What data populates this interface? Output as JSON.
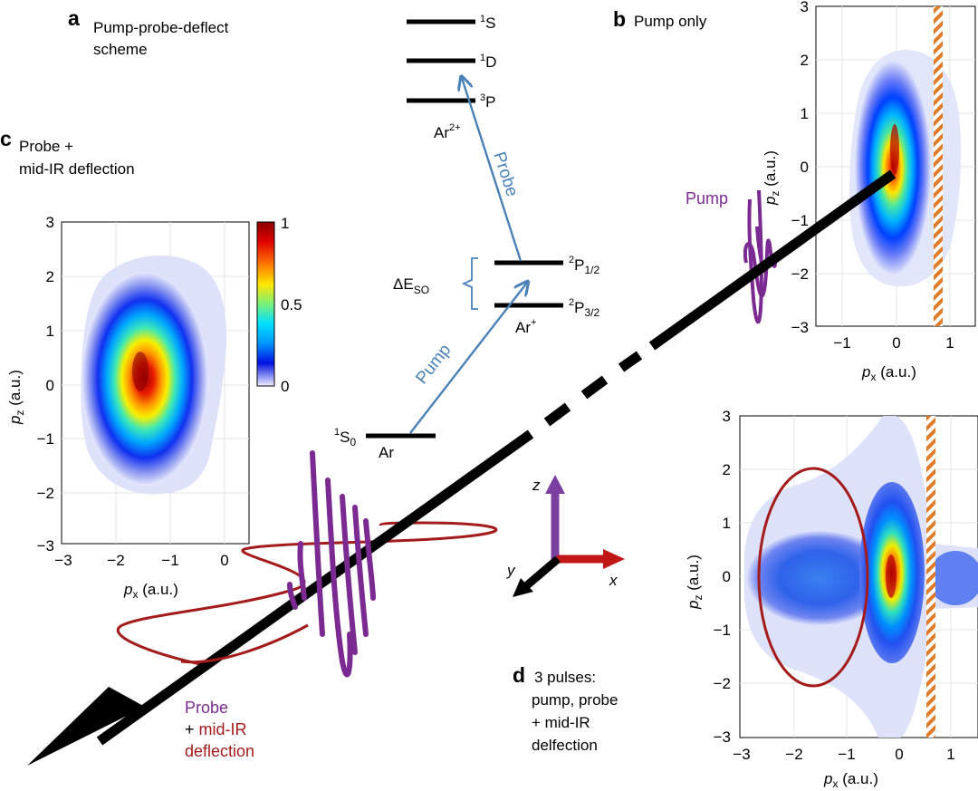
{
  "colors": {
    "pump": "#7b2a91",
    "probe_text": "#7b2a91",
    "midir": "#a31b1b",
    "probe_arrow": "#4a82b8",
    "axis_z": "#7b3fa0",
    "axis_x": "#c01616",
    "axis_y": "#000000",
    "hatch_orange": "#e07b2a"
  },
  "panel_a": {
    "letter": "a",
    "title_line1": "Pump-probe-deflect",
    "title_line2": "scheme",
    "levels": {
      "S1": {
        "sup": "1",
        "name": "S"
      },
      "D1": {
        "sup": "1",
        "name": "D"
      },
      "P3": {
        "sup": "3",
        "name": "P"
      },
      "P12": {
        "sup": "2",
        "name": "P",
        "sub": "1/2"
      },
      "P32": {
        "sup": "2",
        "name": "P",
        "sub": "3/2"
      },
      "S0": {
        "sup": "1",
        "name": "S",
        "sub": "0"
      }
    },
    "ion2_base": "Ar",
    "ion2_charge": "2+",
    "ion1_base": "Ar",
    "ion1_charge": "+",
    "neutral": "Ar",
    "delta_base": "ΔE",
    "delta_sub": "SO",
    "pump_label": "Pump",
    "probe_label": "Probe"
  },
  "panel_b": {
    "letter": "b",
    "title": "Pump only",
    "x_ticks": [
      "−1",
      "0",
      "1"
    ],
    "y_ticks": [
      "3",
      "2",
      "1",
      "0",
      "−1",
      "−2",
      "−3"
    ],
    "xlabel_base": "p",
    "xlabel_sub": "x",
    "xlabel_unit": " (a.u.)",
    "ylabel_base": "p",
    "ylabel_sub": "z",
    "ylabel_unit": " (a.u.)",
    "pump_label": "Pump"
  },
  "panel_c": {
    "letter": "c",
    "title_line1": "Probe +",
    "title_line2": "mid-IR deflection",
    "x_ticks": [
      "−3",
      "−2",
      "−1",
      "0"
    ],
    "y_ticks": [
      "3",
      "2",
      "1",
      "0",
      "−1",
      "−2",
      "−3"
    ],
    "xlabel_base": "p",
    "xlabel_sub": "x",
    "xlabel_unit": " (a.u.)",
    "ylabel_base": "p",
    "ylabel_sub": "z",
    "ylabel_unit": " (a.u.)",
    "colorbar_ticks": [
      "1",
      "0.5",
      "0"
    ]
  },
  "panel_d": {
    "letter": "d",
    "caption_lines": [
      "3 pulses:",
      "pump, probe",
      "+ mid-IR",
      "delfection"
    ],
    "x_ticks": [
      "−3",
      "−2",
      "−1",
      "0",
      "1"
    ],
    "y_ticks": [
      "3",
      "2",
      "1",
      "0",
      "−1",
      "−2",
      "−3"
    ],
    "xlabel_base": "p",
    "xlabel_sub": "x",
    "xlabel_unit": " (a.u.)",
    "ylabel_base": "p",
    "ylabel_sub": "z",
    "ylabel_unit": " (a.u.)"
  },
  "axes_triad": {
    "z": "z",
    "x": "x",
    "y": "y"
  },
  "beam_label": {
    "probe": "Probe",
    "plus": "+ ",
    "midir": "mid-IR",
    "deflection": "deflection"
  }
}
